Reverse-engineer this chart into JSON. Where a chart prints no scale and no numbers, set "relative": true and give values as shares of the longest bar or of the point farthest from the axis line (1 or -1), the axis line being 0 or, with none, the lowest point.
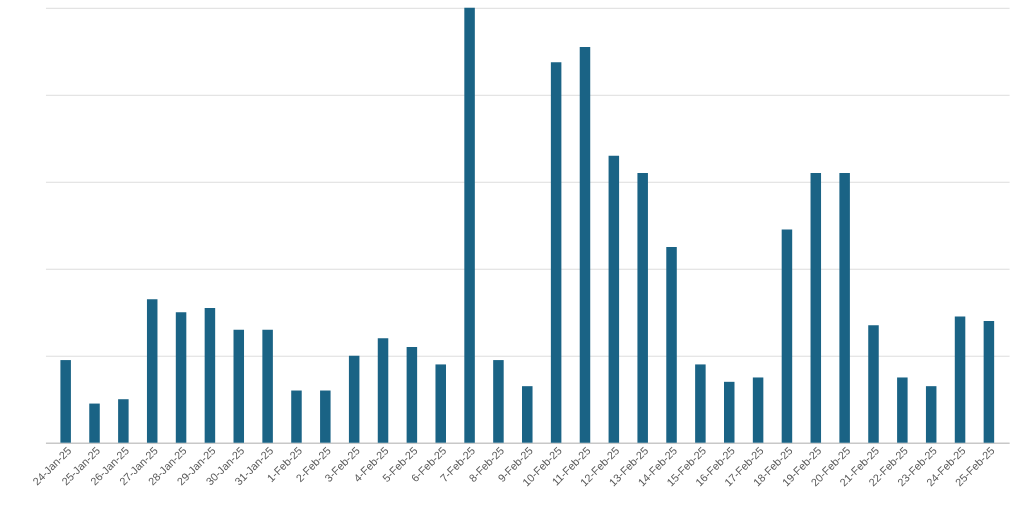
{
  "chart_data": {
    "type": "bar",
    "relative": true,
    "grid": "y",
    "categories": [
      "24-Jan-25",
      "25-Jan-25",
      "26-Jan-25",
      "27-Jan-25",
      "28-Jan-25",
      "29-Jan-25",
      "30-Jan-25",
      "31-Jan-25",
      "1-Feb-25",
      "2-Feb-25",
      "3-Feb-25",
      "4-Feb-25",
      "5-Feb-25",
      "6-Feb-25",
      "7-Feb-25",
      "8-Feb-25",
      "9-Feb-25",
      "10-Feb-25",
      "11-Feb-25",
      "12-Feb-25",
      "13-Feb-25",
      "14-Feb-25",
      "15-Feb-25",
      "16-Feb-25",
      "17-Feb-25",
      "18-Feb-25",
      "19-Feb-25",
      "20-Feb-25",
      "21-Feb-25",
      "22-Feb-25",
      "23-Feb-25",
      "24-Feb-25",
      "25-Feb-25"
    ],
    "values": [
      0.19,
      0.09,
      0.1,
      0.33,
      0.3,
      0.31,
      0.26,
      0.26,
      0.12,
      0.12,
      0.2,
      0.24,
      0.22,
      0.18,
      1,
      0.19,
      0.13,
      0.875,
      0.91,
      0.66,
      0.62,
      0.45,
      0.18,
      0.14,
      0.15,
      0.49,
      0.62,
      0.62,
      0.27,
      0.15,
      0.13,
      0.29,
      0.28
    ],
    "color": "#1a6385"
  }
}
